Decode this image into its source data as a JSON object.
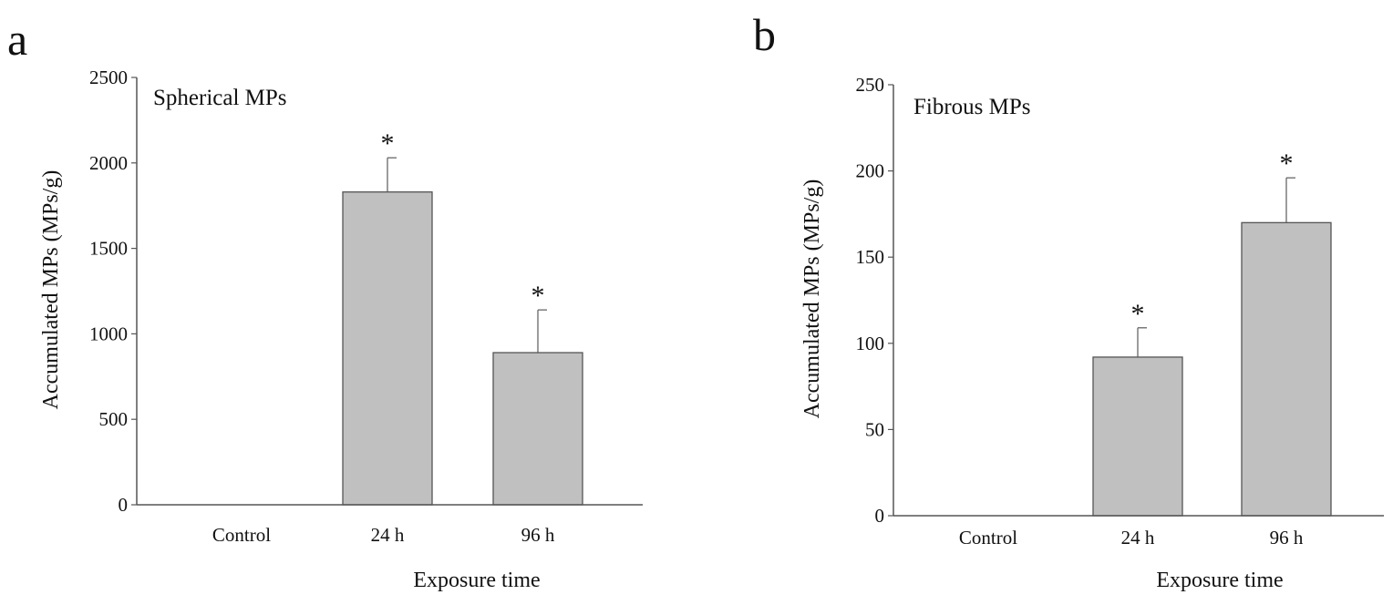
{
  "chart_data": [
    {
      "type": "bar",
      "panel_label": "a",
      "title": "Spherical MPs",
      "xlabel": "Exposure time",
      "ylabel": "Accumulated MPs (MPs/g)",
      "categories": [
        "Control",
        "24 h",
        "96 h"
      ],
      "values": [
        0,
        1830,
        890
      ],
      "error": [
        0,
        200,
        250
      ],
      "significance": [
        "",
        "*",
        "*"
      ],
      "ylim": [
        0,
        2500
      ],
      "yticks": [
        0,
        500,
        1000,
        1500,
        2000,
        2500
      ],
      "bar_color": "#c0c0c0"
    },
    {
      "type": "bar",
      "panel_label": "b",
      "title": "Fibrous MPs",
      "xlabel": "Exposure time",
      "ylabel": "Accumulated MPs (MPs/g)",
      "categories": [
        "Control",
        "24 h",
        "96 h"
      ],
      "values": [
        0,
        92,
        170
      ],
      "error": [
        0,
        17,
        26
      ],
      "significance": [
        "",
        "*",
        "*"
      ],
      "ylim": [
        0,
        250
      ],
      "yticks": [
        0,
        50,
        100,
        150,
        200,
        250
      ],
      "bar_color": "#c0c0c0"
    }
  ]
}
